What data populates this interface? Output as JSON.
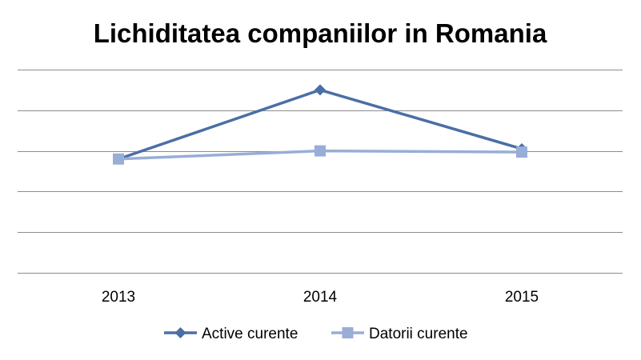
{
  "chart_data": {
    "type": "line",
    "title": "Lichiditatea companiilor in Romania",
    "categories": [
      "2013",
      "2014",
      "2015"
    ],
    "series": [
      {
        "name": "Active curente",
        "values": [
          2.8,
          4.5,
          3.05
        ],
        "color": "#4a6fa5",
        "marker": "diamond"
      },
      {
        "name": "Datorii curente",
        "values": [
          2.8,
          3.0,
          2.97
        ],
        "color": "#98aed6",
        "marker": "square"
      }
    ],
    "ylim": [
      0,
      5
    ],
    "y_gridlines": [
      0,
      1,
      2,
      3,
      4,
      5
    ],
    "y_tick_labels_visible": false,
    "grid": true,
    "legend": "bottom",
    "xlabel": "",
    "ylabel": ""
  }
}
